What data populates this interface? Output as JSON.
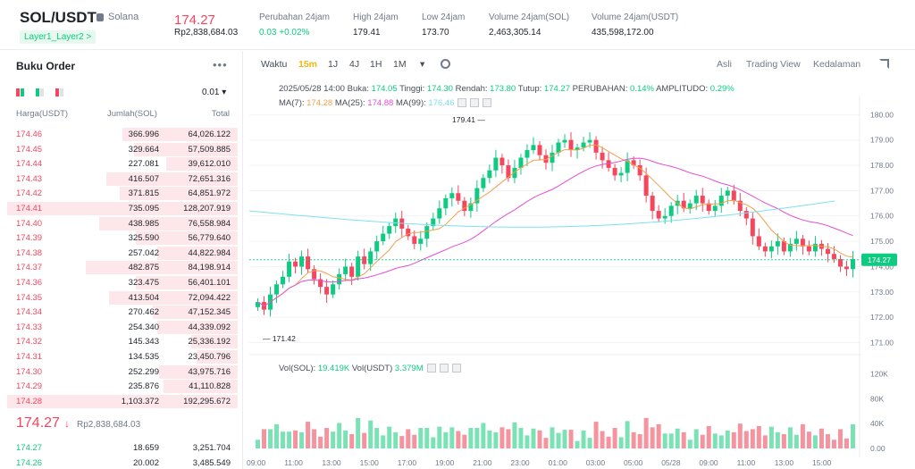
{
  "header": {
    "pair": "SOL/USDT",
    "coin": "Solana",
    "tag": "Layer1_Layer2 >",
    "price": "174.27",
    "price_idr": "Rp2,838,684.03",
    "stats": [
      {
        "label": "Perubahan 24jam",
        "value": "0.03 +0.02%",
        "green": true
      },
      {
        "label": "High 24jam",
        "value": "179.41"
      },
      {
        "label": "Low 24jam",
        "value": "173.70"
      },
      {
        "label": "Volume 24jam(SOL)",
        "value": "2,463,305.14"
      },
      {
        "label": "Volume 24jam(USDT)",
        "value": "435,598,172.00"
      }
    ]
  },
  "orderbook": {
    "title": "Buku Order",
    "more": "•••",
    "precision": "0.01 ▾",
    "col_price": "Harga(USDT)",
    "col_amount": "Jumlah(SOL)",
    "col_total": "Total",
    "asks": [
      [
        "174.46",
        "366.996",
        "64,026.122",
        0.5
      ],
      [
        "174.45",
        "329.664",
        "57,509.885",
        0.45
      ],
      [
        "174.44",
        "227.081",
        "39,612.010",
        0.31
      ],
      [
        "174.43",
        "416.507",
        "72,651.316",
        0.57
      ],
      [
        "174.42",
        "371.815",
        "64,851.972",
        0.51
      ],
      [
        "174.41",
        "735.095",
        "128,207.919",
        1.0
      ],
      [
        "174.40",
        "438.985",
        "76,558.984",
        0.6
      ],
      [
        "174.39",
        "325.590",
        "56,779.640",
        0.44
      ],
      [
        "174.38",
        "257.042",
        "44,822.984",
        0.35
      ],
      [
        "174.37",
        "482.875",
        "84,198.914",
        0.66
      ],
      [
        "174.36",
        "323.475",
        "56,401.101",
        0.44
      ],
      [
        "174.35",
        "413.504",
        "72,094.422",
        0.56
      ],
      [
        "174.34",
        "270.462",
        "47,152.345",
        0.37
      ],
      [
        "174.33",
        "254.340",
        "44,339.092",
        0.35
      ],
      [
        "174.32",
        "145.343",
        "25,336.192",
        0.2
      ],
      [
        "174.31",
        "134.535",
        "23,450.796",
        0.18
      ],
      [
        "174.30",
        "252.299",
        "43,975.716",
        0.34
      ],
      [
        "174.29",
        "235.876",
        "41,110.828",
        0.32
      ],
      [
        "174.28",
        "1,103.372",
        "192,295.672",
        1.0
      ]
    ],
    "mid_price": "174.27",
    "mid_arrow": "↓",
    "mid_idr": "Rp2,838,684.03",
    "bids": [
      [
        "174.27",
        "18.659",
        "3,251.704"
      ],
      [
        "174.26",
        "20.002",
        "3,485.549"
      ]
    ]
  },
  "toolbar": {
    "items": [
      "Waktu",
      "15m",
      "1J",
      "4J",
      "1H",
      "1M",
      "▾"
    ],
    "active": "15m",
    "right": [
      "Asli",
      "Trading View",
      "Kedalaman"
    ],
    "right_active": "Asli"
  },
  "info": {
    "line1": {
      "date": "2025/05/28 14:00",
      "open_l": "Buka:",
      "open": "174.05",
      "high_l": "Tinggi:",
      "high": "174.30",
      "low_l": "Rendah:",
      "low": "173.80",
      "close_l": "Tutup:",
      "close": "174.27",
      "chg_l": "PERUBAHAN:",
      "chg": "0.14%",
      "amp_l": "AMPLITUDO:",
      "amp": "0.29%"
    },
    "line2": {
      "ma7_l": "MA(7):",
      "ma7": "174.28",
      "ma25_l": "MA(25):",
      "ma25": "174.88",
      "ma99_l": "MA(99):",
      "ma99": "176.46"
    },
    "vol": {
      "l1": "Vol(SOL):",
      "v1": "19.419K",
      "l2": "Vol(USDT)",
      "v2": "3.379M"
    }
  },
  "chart_data": {
    "type": "candlestick",
    "interval": "15m",
    "y_ticks": [
      "180.00",
      "179.00",
      "178.00",
      "177.00",
      "176.00",
      "175.00",
      "174.00",
      "173.00",
      "172.00",
      "171.00"
    ],
    "vol_ticks": [
      "120K",
      "80K",
      "40K",
      "0.00"
    ],
    "x_ticks": [
      "09:00",
      "11:00",
      "13:00",
      "15:00",
      "17:00",
      "19:00",
      "21:00",
      "23:00",
      "01:00",
      "03:00",
      "05:00",
      "05/28",
      "09:00",
      "11:00",
      "13:00",
      "15:00"
    ],
    "high_label": "179.41",
    "low_label": "171.42",
    "last_price": "174.27",
    "colors": {
      "up": "#0ecb81",
      "down": "#f6465d",
      "ma7": "#f0a04b",
      "ma25": "#e44fd1",
      "ma99": "#7ee0f0"
    },
    "candles": [
      172.6,
      172.3,
      172.9,
      173.3,
      173.6,
      174.2,
      174.0,
      174.4,
      173.9,
      173.5,
      173.2,
      172.9,
      173.3,
      173.7,
      174.0,
      173.6,
      174.4,
      174.1,
      174.6,
      175.0,
      175.3,
      175.6,
      175.9,
      175.5,
      175.2,
      174.9,
      175.1,
      175.6,
      175.9,
      176.3,
      176.7,
      176.9,
      176.6,
      176.2,
      176.5,
      177.1,
      177.5,
      177.8,
      178.3,
      178.0,
      177.5,
      177.9,
      178.3,
      178.6,
      178.8,
      178.4,
      178.1,
      178.5,
      178.9,
      179.0,
      178.6,
      178.7,
      178.9,
      179.0,
      178.5,
      178.2,
      177.9,
      177.6,
      177.7,
      178.2,
      178.0,
      177.6,
      176.8,
      176.2,
      175.9,
      176.0,
      176.4,
      176.6,
      176.3,
      176.5,
      176.8,
      176.5,
      176.2,
      176.4,
      176.8,
      177.0,
      176.6,
      176.2,
      175.9,
      175.2,
      174.8,
      174.6,
      174.8,
      175.0,
      174.6,
      174.9,
      175.1,
      174.8,
      174.6,
      174.9,
      174.7,
      174.5,
      174.3,
      174.0,
      173.9,
      174.3
    ]
  }
}
